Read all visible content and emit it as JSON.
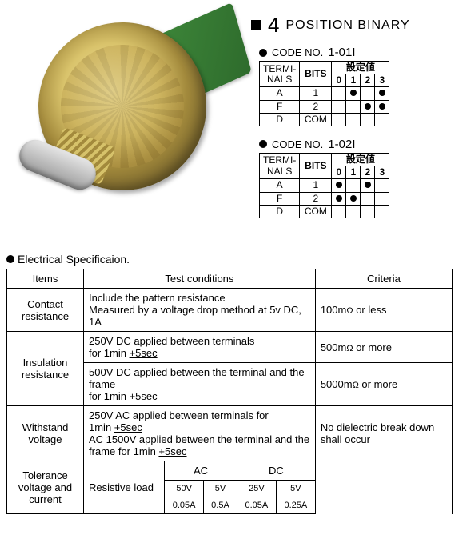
{
  "heading": {
    "number": "4",
    "label": "POSITION BINARY"
  },
  "codes": [
    {
      "title_prefix": "CODE NO.",
      "code": "1-01I",
      "term_header": "TERMI-\nNALS",
      "bits_header": "BITS",
      "setting_header": "設定値",
      "cols": [
        "0",
        "1",
        "2",
        "3"
      ],
      "rows": [
        {
          "t": "A",
          "b": "1",
          "dots": [
            false,
            true,
            false,
            true
          ]
        },
        {
          "t": "F",
          "b": "2",
          "dots": [
            false,
            false,
            true,
            true
          ]
        },
        {
          "t": "D",
          "b": "COM",
          "dots": [
            false,
            false,
            false,
            false
          ]
        }
      ]
    },
    {
      "title_prefix": "CODE NO.",
      "code": "1-02I",
      "term_header": "TERMI-\nNALS",
      "bits_header": "BITS",
      "setting_header": "設定値",
      "cols": [
        "0",
        "1",
        "2",
        "3"
      ],
      "rows": [
        {
          "t": "A",
          "b": "1",
          "dots": [
            true,
            false,
            true,
            false
          ]
        },
        {
          "t": "F",
          "b": "2",
          "dots": [
            true,
            true,
            false,
            false
          ]
        },
        {
          "t": "D",
          "b": "COM",
          "dots": [
            false,
            false,
            false,
            false
          ]
        }
      ]
    }
  ],
  "spec_title": "Electrical Specificaion.",
  "spec": {
    "headers": {
      "items": "Items",
      "cond": "Test conditions",
      "crit": "Criteria"
    },
    "rows": {
      "contact": {
        "item": "Contact resistance",
        "cond": "Include the pattern resistance\nMeasured by a voltage  drop method at 5v DC, 1A",
        "crit_val": "100m",
        "crit_unit": "Ω",
        "crit_suffix": " or less"
      },
      "insul": {
        "item": "Insulation resistance",
        "c1": " 250V DC applied between terminals\nfor 1min ",
        "c1b": "+5sec",
        "r1_val": "500m",
        "r1_unit": "Ω",
        "r1_suffix": " or more",
        "c2": "500V DC applied between the terminal and the frame\nfor 1min ",
        "c2b": "+5sec",
        "r2_val": "5000m",
        "r2_unit": "Ω",
        "r2_suffix": " or more"
      },
      "withstand": {
        "item": "Withstand voltage",
        "cond1": "250V AC applied between terminals for\n1min ",
        "cond1b": "+5sec",
        "cond2": "AC 1500V applied between the terminal and the\nframe for 1min ",
        "cond2b": "+5sec",
        "crit": "No dielectric break down shall occur"
      },
      "tol": {
        "item": "Tolerance voltage and current",
        "load": "Resistive load",
        "ac_label": "AC",
        "dc_label": "DC",
        "ac": {
          "v1": "50V",
          "v2": "5V",
          "a1": "0.05A",
          "a2": "0.5A"
        },
        "dc": {
          "v1": "25V",
          "v2": "5V",
          "a1": "0.05A",
          "a2": "0.25A"
        }
      }
    }
  }
}
